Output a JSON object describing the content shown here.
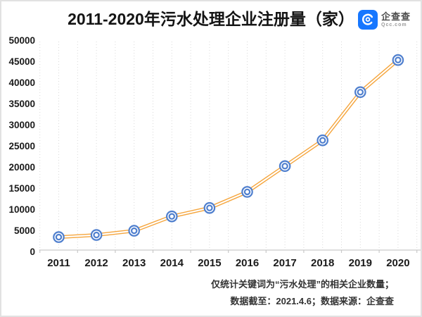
{
  "header": {
    "title": "2011-2020年污水处理企业注册量（家）",
    "logo": {
      "name": "企查查",
      "domain": "Qcc.com"
    }
  },
  "footer": {
    "note_line1": "仅统计关键词为“污水处理”的相关企业数量；",
    "note_line2": "数据截至：2021.4.6；数据来源：企查查"
  },
  "colors": {
    "line_orange": "#F5A53C",
    "marker_blue": "#4F7FCE",
    "grid": "#D9D9D9",
    "axis": "#C9C9C9",
    "tick_text": "#1A1A1A",
    "logo_blue": "#1677FF"
  },
  "chart_data": {
    "type": "line",
    "title": "2011-2020年污水处理企业注册量（家）",
    "categories": [
      "2011",
      "2012",
      "2013",
      "2014",
      "2015",
      "2016",
      "2017",
      "2018",
      "2019",
      "2020"
    ],
    "values": [
      3400,
      3900,
      4900,
      8300,
      10300,
      14100,
      20200,
      26300,
      37700,
      45300
    ],
    "ylim": [
      0,
      50000
    ],
    "yticks": [
      0,
      5000,
      10000,
      15000,
      20000,
      25000,
      30000,
      35000,
      40000,
      45000,
      50000
    ],
    "xlabel": "",
    "ylabel": "",
    "legend": "none",
    "grid": "vertical-dotted",
    "line_style": "double-stroke-orange",
    "marker_style": "double-ring-circle"
  }
}
